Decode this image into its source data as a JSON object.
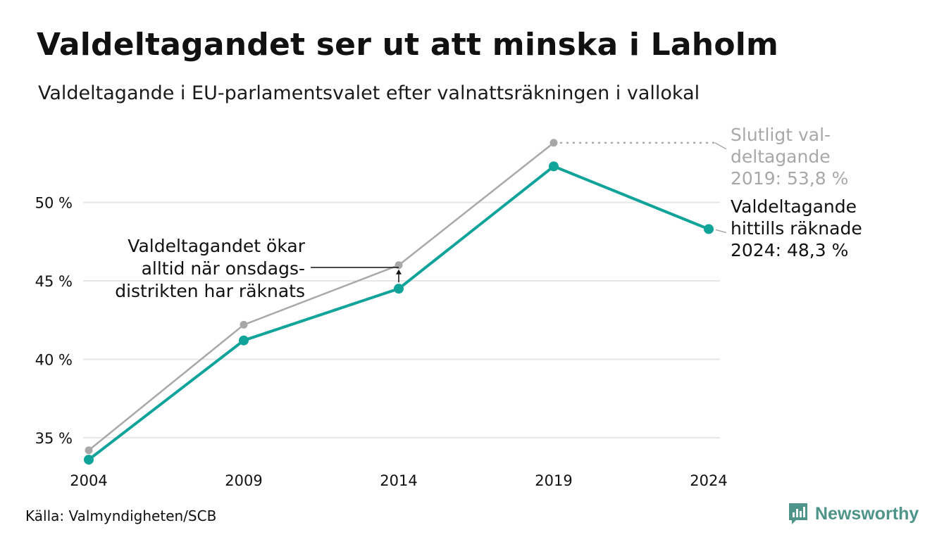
{
  "title": "Valdeltagandet ser ut att minska i Laholm",
  "subtitle": "Valdeltagande i EU-parlamentsvalet efter valnattsräkningen i vallokal",
  "source": "Källa: Valmyndigheten/SCB",
  "brand": {
    "name": "Newsworthy",
    "icon": "newsworthy-logo-icon"
  },
  "colors": {
    "preliminary": "#0fa39a",
    "final": "#a8a8a8",
    "grid": "#e6e6e6",
    "text": "#111111",
    "muted": "#a8a8a8",
    "brand": "#4f9488"
  },
  "chart_data": {
    "type": "line",
    "x": [
      2004,
      2009,
      2014,
      2019,
      2024
    ],
    "categories": [
      "2004",
      "2009",
      "2014",
      "2019",
      "2024"
    ],
    "ylim": [
      33.2,
      55.5
    ],
    "yticks": [
      35,
      40,
      45,
      50
    ],
    "ytick_labels": [
      "35 %",
      "40 %",
      "45 %",
      "50 %"
    ],
    "grid": true,
    "series": [
      {
        "key": "final",
        "values": [
          34.2,
          42.2,
          46.0,
          53.8,
          null
        ],
        "color": "#a8a8a8"
      },
      {
        "key": "preliminary",
        "values": [
          33.6,
          41.2,
          44.5,
          52.3,
          48.3
        ],
        "color": "#0fa39a"
      }
    ],
    "annotations": {
      "final_label": [
        "Slutligt val-",
        "deltagande",
        "2019: 53,8 %"
      ],
      "preliminary_label": [
        "Valdeltagande",
        "hittills räknade",
        "2024: 48,3 %"
      ],
      "note": [
        "Valdeltagandet ökar",
        "alltid när onsdags-",
        "distrikten har räknats"
      ]
    }
  }
}
